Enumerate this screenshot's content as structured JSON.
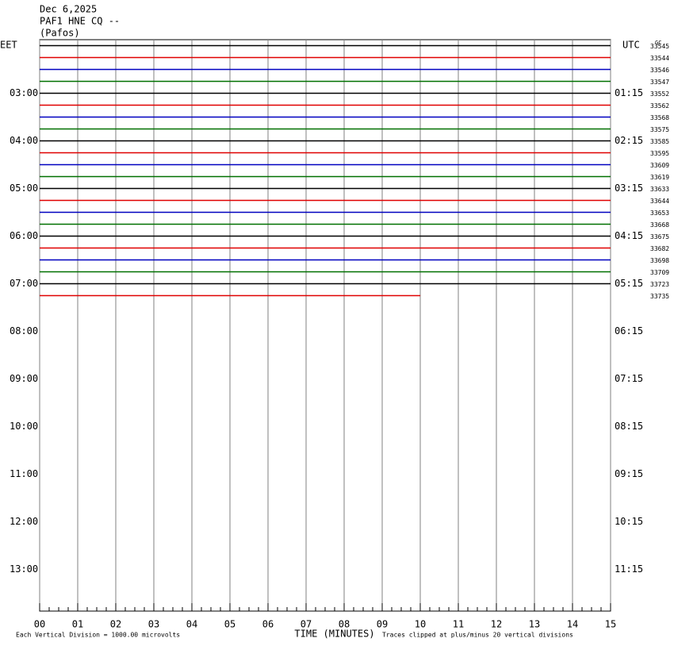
{
  "chart_data": {
    "type": "helicorder",
    "title_lines": [
      "Dec 6,2025",
      "PAF1 HNE CQ --",
      "(Pafos)"
    ],
    "left_zone": "EET",
    "right_zone": "UTC",
    "corner_note": "GC",
    "xlabel": "TIME (MINUTES)",
    "scale_note": "Each Vertical Division = 1000.00 microvolts",
    "clip_note": "Traces clipped at plus/minus 20 vertical divisions",
    "xlim": [
      0,
      15
    ],
    "xticks": [
      {
        "value": 0,
        "label": "00"
      },
      {
        "value": 1,
        "label": "01"
      },
      {
        "value": 2,
        "label": "02"
      },
      {
        "value": 3,
        "label": "03"
      },
      {
        "value": 4,
        "label": "04"
      },
      {
        "value": 5,
        "label": "05"
      },
      {
        "value": 6,
        "label": "06"
      },
      {
        "value": 7,
        "label": "07"
      },
      {
        "value": 8,
        "label": "08"
      },
      {
        "value": 9,
        "label": "09"
      },
      {
        "value": 10,
        "label": "10"
      },
      {
        "value": 11,
        "label": "11"
      },
      {
        "value": 12,
        "label": "12"
      },
      {
        "value": 13,
        "label": "13"
      },
      {
        "value": 14,
        "label": "14"
      },
      {
        "value": 15,
        "label": "15"
      }
    ],
    "ylim": [
      -0.5,
      47.5
    ],
    "yticks_left": [
      {
        "value": 4,
        "label": "03:00"
      },
      {
        "value": 8,
        "label": "04:00"
      },
      {
        "value": 12,
        "label": "05:00"
      },
      {
        "value": 16,
        "label": "06:00"
      },
      {
        "value": 20,
        "label": "07:00"
      },
      {
        "value": 24,
        "label": "08:00"
      },
      {
        "value": 28,
        "label": "09:00"
      },
      {
        "value": 32,
        "label": "10:00"
      },
      {
        "value": 36,
        "label": "11:00"
      },
      {
        "value": 40,
        "label": "12:00"
      },
      {
        "value": 44,
        "label": "13:00"
      }
    ],
    "yticks_right": [
      {
        "value": 4,
        "label": "01:15"
      },
      {
        "value": 8,
        "label": "02:15"
      },
      {
        "value": 12,
        "label": "03:15"
      },
      {
        "value": 16,
        "label": "04:15"
      },
      {
        "value": 20,
        "label": "05:15"
      },
      {
        "value": 24,
        "label": "06:15"
      },
      {
        "value": 28,
        "label": "07:15"
      },
      {
        "value": 32,
        "label": "08:15"
      },
      {
        "value": 36,
        "label": "09:15"
      },
      {
        "value": 40,
        "label": "10:15"
      },
      {
        "value": 44,
        "label": "11:15"
      }
    ],
    "traces": [
      {
        "id": "33545",
        "color": "#000000",
        "end": 15
      },
      {
        "id": "33544",
        "color": "#e00000",
        "end": 15
      },
      {
        "id": "33546",
        "color": "#0000c0",
        "end": 15
      },
      {
        "id": "33547",
        "color": "#007000",
        "end": 15
      },
      {
        "id": "33552",
        "color": "#000000",
        "end": 15
      },
      {
        "id": "33562",
        "color": "#e00000",
        "end": 15
      },
      {
        "id": "33568",
        "color": "#0000c0",
        "end": 15
      },
      {
        "id": "33575",
        "color": "#007000",
        "end": 15
      },
      {
        "id": "33585",
        "color": "#000000",
        "end": 15
      },
      {
        "id": "33595",
        "color": "#e00000",
        "end": 15
      },
      {
        "id": "33609",
        "color": "#0000c0",
        "end": 15
      },
      {
        "id": "33619",
        "color": "#007000",
        "end": 15
      },
      {
        "id": "33633",
        "color": "#000000",
        "end": 15
      },
      {
        "id": "33644",
        "color": "#e00000",
        "end": 15
      },
      {
        "id": "33653",
        "color": "#0000c0",
        "end": 15
      },
      {
        "id": "33668",
        "color": "#007000",
        "end": 15
      },
      {
        "id": "33675",
        "color": "#000000",
        "end": 15
      },
      {
        "id": "33682",
        "color": "#e00000",
        "end": 15
      },
      {
        "id": "33698",
        "color": "#0000c0",
        "end": 15
      },
      {
        "id": "33709",
        "color": "#007000",
        "end": 15
      },
      {
        "id": "33723",
        "color": "#000000",
        "end": 15
      },
      {
        "id": "33735",
        "color": "#e00000",
        "end": 10
      }
    ]
  }
}
